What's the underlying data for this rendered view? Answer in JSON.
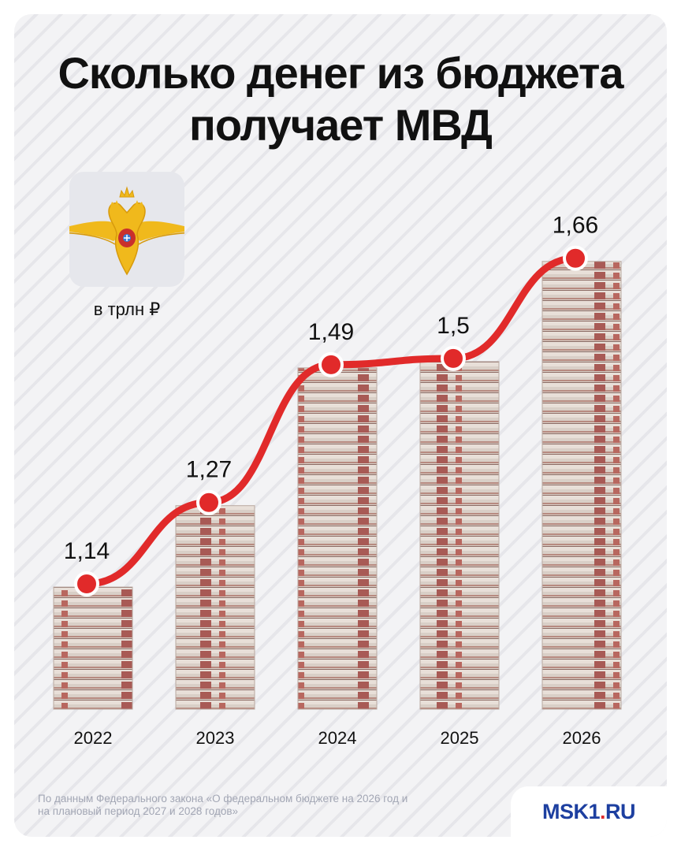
{
  "title": "Сколько денег из бюджета получает МВД",
  "unit_label": "в трлн ₽",
  "emblem": "mvd-eagle-emblem-icon",
  "chart_data": {
    "type": "line",
    "title": "Сколько денег из бюджета получает МВД",
    "ylabel": "в трлн ₽",
    "categories": [
      "2022",
      "2023",
      "2024",
      "2025",
      "2026"
    ],
    "values": [
      1.14,
      1.27,
      1.49,
      1.5,
      1.66
    ],
    "value_labels": [
      "1,14",
      "1,27",
      "1,49",
      "1,5",
      "1,66"
    ],
    "ylim": [
      0.94,
      1.71
    ],
    "grid": false,
    "bars": "banknote-stacks"
  },
  "source": "По данным Федерального закона «О федеральном бюджете на 2026 год и на плановый период 2027 и 2028 годов»",
  "logo": {
    "main": "MSK1",
    "dot": ".",
    "suffix": "RU"
  },
  "colors": {
    "line": "#e12a2a",
    "background": "#f3f3f5",
    "emblem": "#f0b91c"
  }
}
